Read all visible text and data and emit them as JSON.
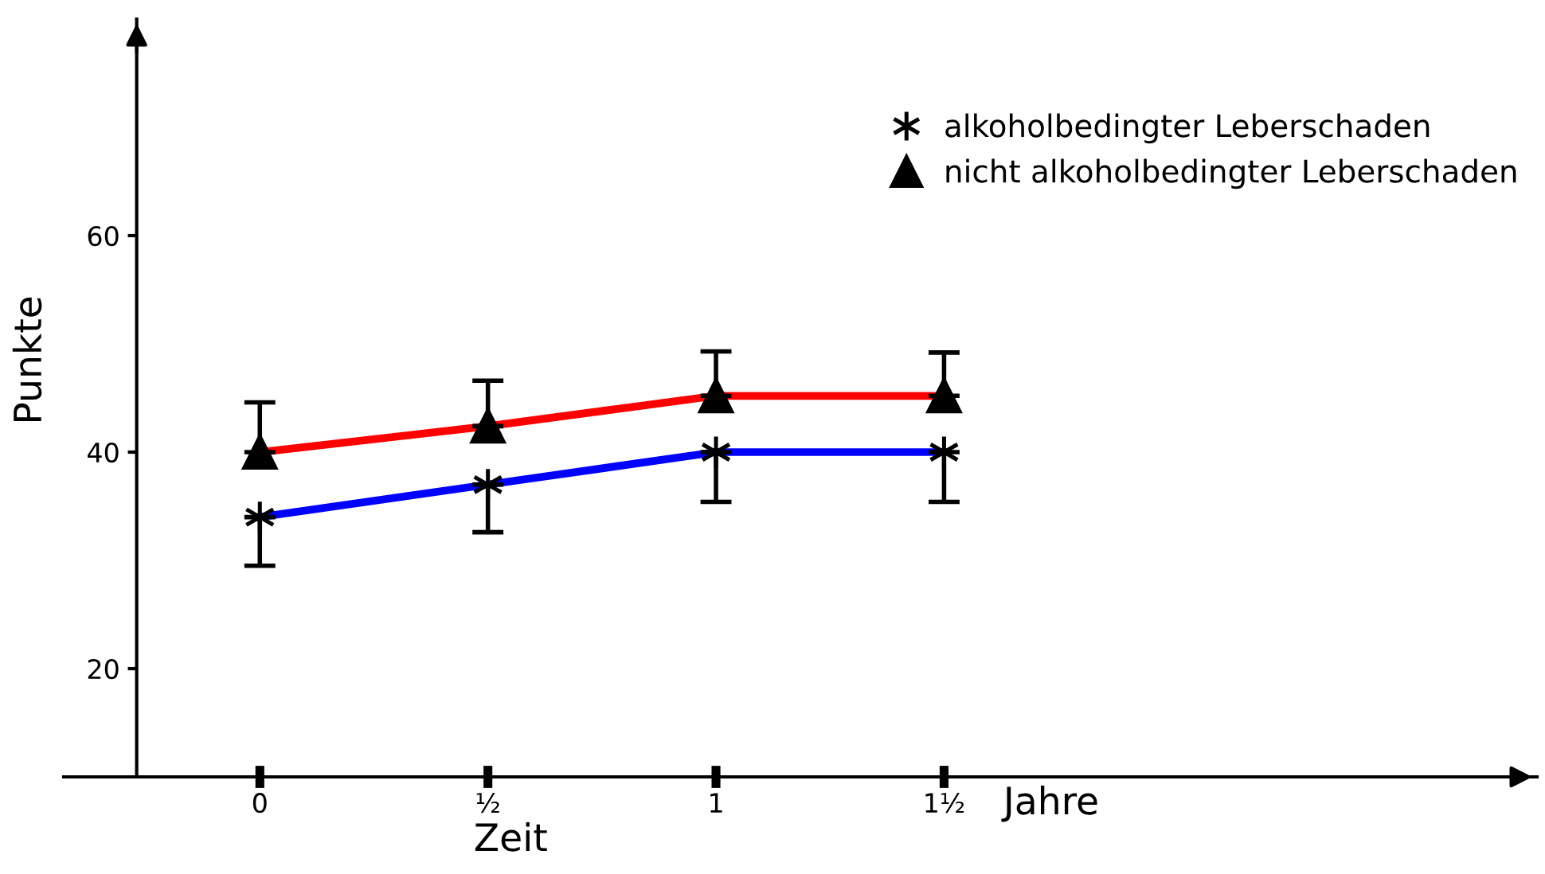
{
  "chart_data": {
    "type": "line",
    "xlabel": "Zeit",
    "ylabel": "Punkte",
    "x": [
      0,
      0.5,
      1,
      1.5
    ],
    "series": [
      {
        "name": "alkoholbedingter Leberschaden",
        "color": "#0000ff",
        "marker": "cross",
        "values": [
          34,
          37,
          40,
          40
        ],
        "errors": [
          [
            29.5,
            34
          ],
          [
            32.6,
            37
          ],
          [
            35.4,
            40
          ],
          [
            35.4,
            40
          ]
        ]
      },
      {
        "name": "nicht alkoholbedingter Leberschaden",
        "color": "#ff0000",
        "marker": "triangle",
        "values": [
          40,
          42.4,
          45.2,
          45.2
        ],
        "errors": [
          [
            40,
            44.6
          ],
          [
            42.4,
            46.6
          ],
          [
            45.2,
            49.3
          ],
          [
            45.2,
            49.2
          ]
        ]
      }
    ],
    "xlim": [
      -0.43,
      2.8
    ],
    "ylim": [
      10,
      80
    ],
    "xticks": [
      0,
      {
        "value": 0.5,
        "label": "½"
      },
      1,
      {
        "value": 1.5,
        "label": "1½"
      }
    ],
    "yticks": [
      20,
      40,
      60
    ],
    "annotations": [
      "Jahre"
    ],
    "legend": "top right",
    "grid": false,
    "line_style": "solid"
  }
}
